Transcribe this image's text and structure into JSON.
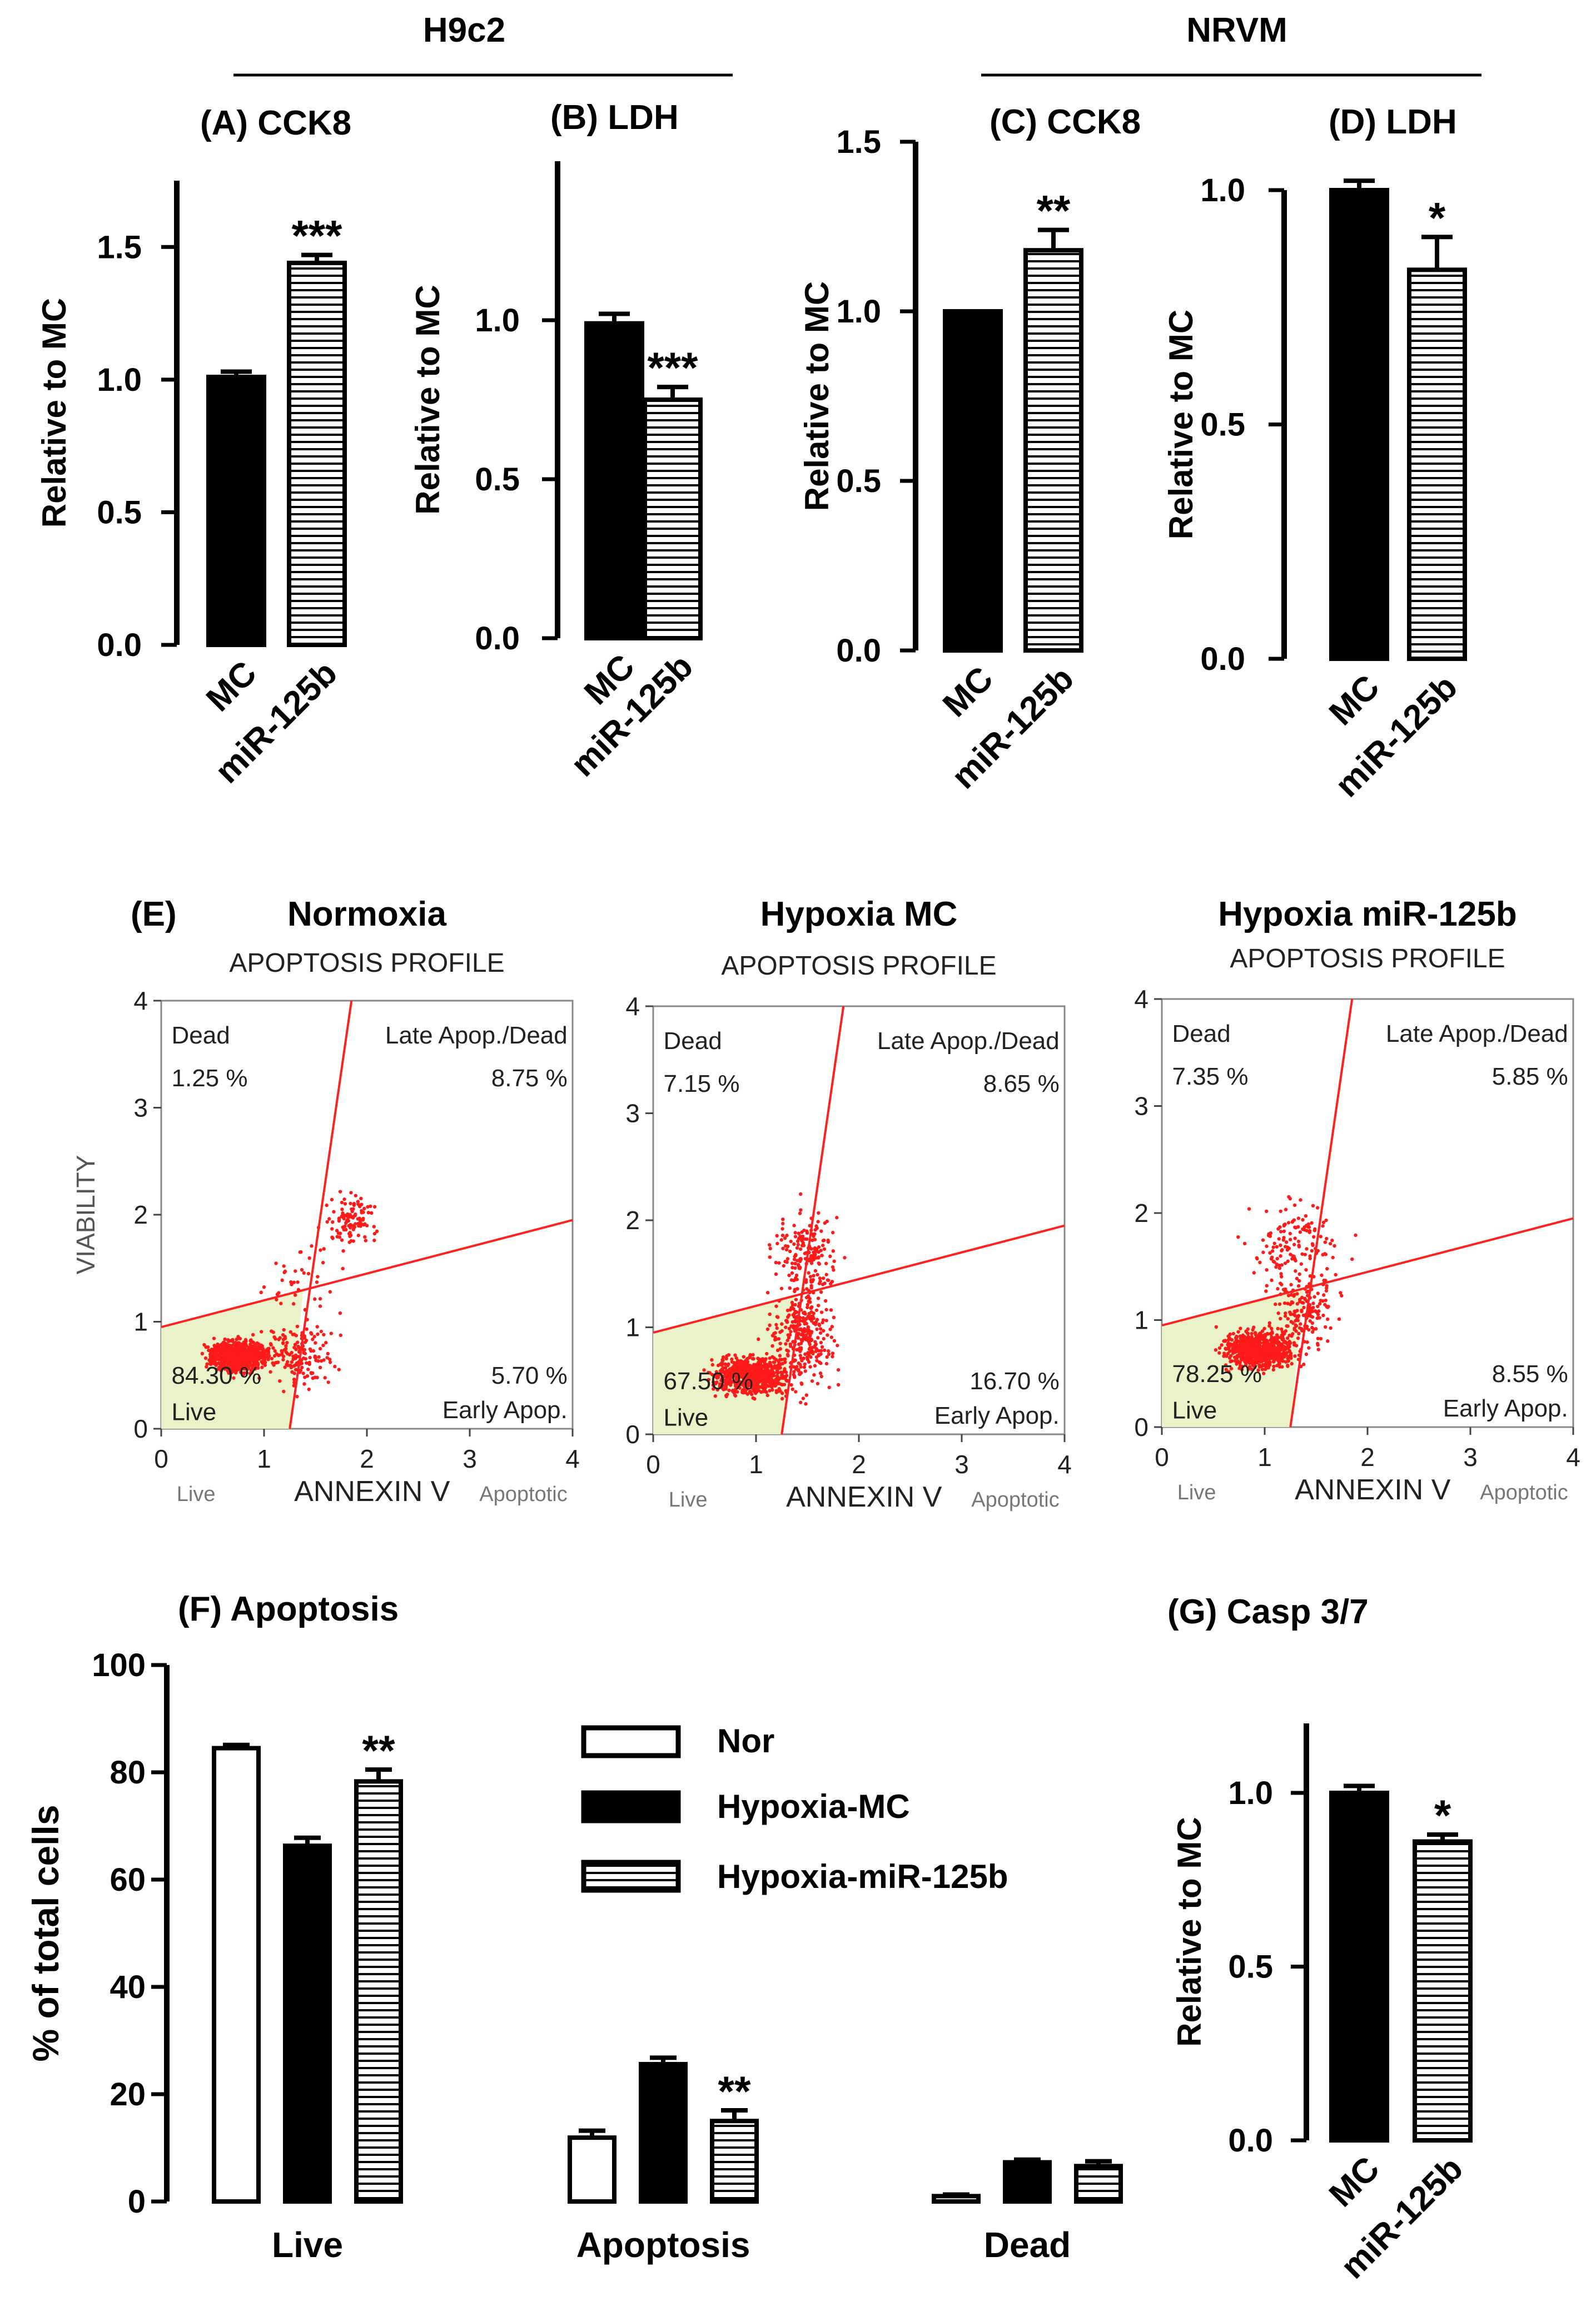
{
  "groups": {
    "h9c2": "H9c2",
    "nrvm": "NRVM"
  },
  "chart_data": [
    {
      "id": "A",
      "type": "bar",
      "title": "(A) CCK8",
      "ylabel": "Relative to MC",
      "categories": [
        "MC",
        "miR-125b"
      ],
      "values": [
        1.01,
        1.44
      ],
      "errors": [
        0.02,
        0.03
      ],
      "patterns": [
        "solid",
        "hatched"
      ],
      "sig": [
        "",
        "***"
      ],
      "ylim": [
        0,
        1.75
      ],
      "yticks": [
        0.0,
        0.5,
        1.0,
        1.5
      ],
      "ytick_labels": [
        "0.0",
        "0.5",
        "1.0",
        "1.5"
      ]
    },
    {
      "id": "B",
      "type": "bar",
      "title": "(B) LDH",
      "ylabel": "Relative to MC",
      "categories": [
        "MC",
        "miR-125b"
      ],
      "values": [
        0.99,
        0.75
      ],
      "errors": [
        0.03,
        0.04
      ],
      "patterns": [
        "solid",
        "hatched"
      ],
      "sig": [
        "",
        "***"
      ],
      "ylim": [
        0,
        1.5
      ],
      "yticks": [
        0.0,
        0.5,
        1.0
      ],
      "ytick_labels": [
        "0.0",
        "0.5",
        "1.0"
      ]
    },
    {
      "id": "C",
      "type": "bar",
      "title": "(C) CCK8",
      "ylabel": "Relative to MC",
      "categories": [
        "MC",
        "miR-125b"
      ],
      "values": [
        1.0,
        1.18
      ],
      "errors": [
        0.0,
        0.06
      ],
      "patterns": [
        "solid",
        "hatched"
      ],
      "sig": [
        "",
        "**"
      ],
      "ylim": [
        0,
        1.5
      ],
      "yticks": [
        0.0,
        0.5,
        1.0,
        1.5
      ],
      "ytick_labels": [
        "0.0",
        "0.5",
        "1.0",
        "1.5"
      ]
    },
    {
      "id": "D",
      "type": "bar",
      "title": "(D) LDH",
      "ylabel": "Relative to MC",
      "categories": [
        "MC",
        "miR-125b"
      ],
      "values": [
        1.0,
        0.83
      ],
      "errors": [
        0.02,
        0.07
      ],
      "patterns": [
        "solid",
        "hatched"
      ],
      "sig": [
        "",
        "*"
      ],
      "ylim": [
        0,
        1.0
      ],
      "yticks": [
        0.0,
        0.5,
        1.0
      ],
      "ytick_labels": [
        "0.0",
        "0.5",
        "1.0"
      ]
    },
    {
      "id": "E",
      "type": "scatter",
      "panel_label": "(E)",
      "plot_title": "APOPTOSIS PROFILE",
      "xlabel": "ANNEXIN V",
      "ylabel": "VIABILITY",
      "xaxis_left": "Live",
      "xaxis_right": "Apoptotic",
      "xlim": [
        0,
        4
      ],
      "ylim": [
        0,
        4
      ],
      "ticks": [
        "0",
        "1",
        "2",
        "3",
        "4"
      ],
      "quadrant_names": {
        "dead": "Dead",
        "late": "Late Apop./Dead",
        "live": "Live",
        "early": "Early Apop."
      },
      "plots": [
        {
          "title": "Normoxia",
          "dead": "1.25 %",
          "late": "8.75 %",
          "live": "84.30 %",
          "early": "5.70 %"
        },
        {
          "title": "Hypoxia MC",
          "dead": "7.15 %",
          "late": "8.65 %",
          "live": "67.50 %",
          "early": "16.70 %"
        },
        {
          "title": "Hypoxia miR-125b",
          "dead": "7.35 %",
          "late": "5.85 %",
          "live": "78.25 %",
          "early": "8.55 %"
        }
      ]
    },
    {
      "id": "F",
      "type": "bar",
      "title": "(F) Apoptosis",
      "ylabel": "% of total cells",
      "categories": [
        "Live",
        "Apoptosis",
        "Dead"
      ],
      "series": [
        {
          "name": "Nor",
          "pattern": "open",
          "values": [
            84.5,
            11.9,
            1.0
          ],
          "errors": [
            0.6,
            1.3,
            0.3
          ],
          "sig": [
            "",
            "",
            ""
          ]
        },
        {
          "name": "Hypoxia-MC",
          "pattern": "solid",
          "values": [
            66.3,
            25.6,
            7.3
          ],
          "errors": [
            1.5,
            1.2,
            0.5
          ],
          "sig": [
            "",
            "",
            ""
          ]
        },
        {
          "name": "Hypoxia-miR-125b",
          "pattern": "hatched",
          "values": [
            78.3,
            15.0,
            6.6
          ],
          "errors": [
            2.2,
            2.0,
            0.9
          ],
          "sig": [
            "**",
            "**",
            ""
          ]
        }
      ],
      "ylim": [
        0,
        100
      ],
      "yticks": [
        0,
        20,
        40,
        60,
        80,
        100
      ],
      "ytick_labels": [
        "0",
        "20",
        "40",
        "60",
        "80",
        "100"
      ]
    },
    {
      "id": "G",
      "type": "bar",
      "title": "(G) Casp 3/7",
      "ylabel": "Relative to MC",
      "categories": [
        "MC",
        "miR-125b"
      ],
      "values": [
        1.0,
        0.86
      ],
      "errors": [
        0.02,
        0.02
      ],
      "patterns": [
        "solid",
        "hatched"
      ],
      "sig": [
        "",
        "*"
      ],
      "ylim": [
        0,
        1.2
      ],
      "yticks": [
        0.0,
        0.5,
        1.0
      ],
      "ytick_labels": [
        "0.0",
        "0.5",
        "1.0"
      ]
    }
  ]
}
